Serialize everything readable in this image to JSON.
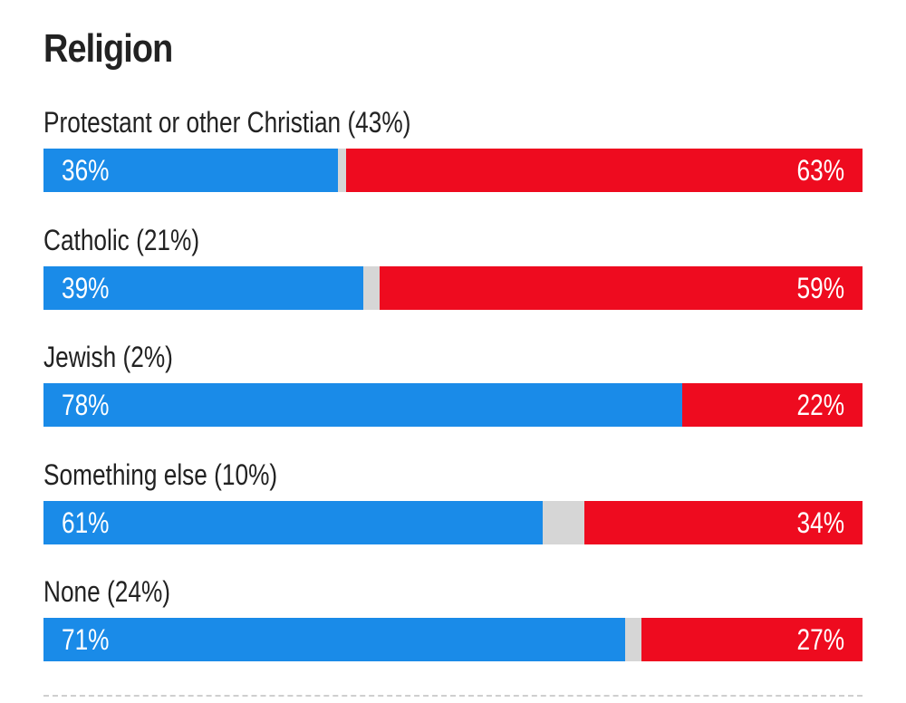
{
  "title": "Religion",
  "colors": {
    "dem": "#1a8be8",
    "rep": "#ee0b1f",
    "other": "#d6d6d6",
    "text": "#222222"
  },
  "chart_data": {
    "type": "bar",
    "orientation": "horizontal-stacked",
    "title": "Religion",
    "categories": [
      "Protestant or other Christian (43%)",
      "Catholic (21%)",
      "Jewish (2%)",
      "Something else (10%)",
      "None (24%)"
    ],
    "series": [
      {
        "values": [
          36,
          39,
          78,
          61,
          71
        ]
      },
      {
        "values": [
          63,
          59,
          22,
          34,
          27
        ]
      }
    ],
    "data_labels": {
      "dem": [
        "36%",
        "39%",
        "78%",
        "61%",
        "71%"
      ],
      "rep": [
        "63%",
        "59%",
        "22%",
        "34%",
        "27%"
      ]
    },
    "xlim": [
      0,
      100
    ],
    "grid": false,
    "legend": "none"
  }
}
